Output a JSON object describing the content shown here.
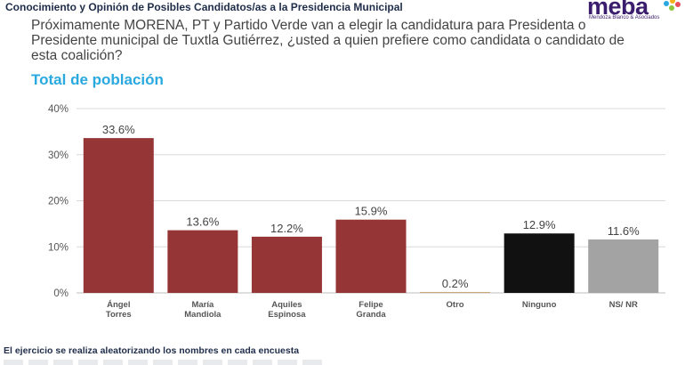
{
  "header": {
    "title": "Conocimiento y Opinión de Posibles Candidatos/as a la Presidencia Municipal"
  },
  "logo": {
    "name": "meba",
    "tagline": "Mendoza Blanco & Asociados"
  },
  "question": "Próximamente MORENA, PT y Partido Verde van a elegir la candidatura para Presidenta o Presidente municipal de Tuxtla Gutiérrez, ¿usted a quien prefiere como candidata o candidato de esta coalición?",
  "subtitle": "Total de población",
  "footer": {
    "note": "El ejercicio se realiza aleatorizando los nombres en cada encuesta"
  },
  "colors": {
    "brand_blue": "#29a9e0",
    "candidate_red": "#963535",
    "other_tan": "#c9a97a",
    "ninguno_black": "#111111",
    "nsnr_gray": "#a3a3a3"
  },
  "chart_data": {
    "type": "bar",
    "categories": [
      [
        "Ángel",
        "Torres"
      ],
      [
        "María",
        "Mandiola"
      ],
      [
        "Aquiles",
        "Espinosa"
      ],
      [
        "Felipe",
        "Granda"
      ],
      [
        "Otro"
      ],
      [
        "Ninguno"
      ],
      [
        "NS/ NR"
      ]
    ],
    "values": [
      33.6,
      13.6,
      12.2,
      15.9,
      0.2,
      12.9,
      11.6
    ],
    "value_labels": [
      "33.6%",
      "13.6%",
      "12.2%",
      "15.9%",
      "0.2%",
      "12.9%",
      "11.6%"
    ],
    "bar_colors": [
      "#963535",
      "#963535",
      "#963535",
      "#963535",
      "#c9a97a",
      "#111111",
      "#a3a3a3"
    ],
    "yticks": [
      "0%",
      "10%",
      "20%",
      "30%",
      "40%"
    ],
    "ylim": [
      0,
      40
    ],
    "grid": true,
    "legend": "none"
  }
}
